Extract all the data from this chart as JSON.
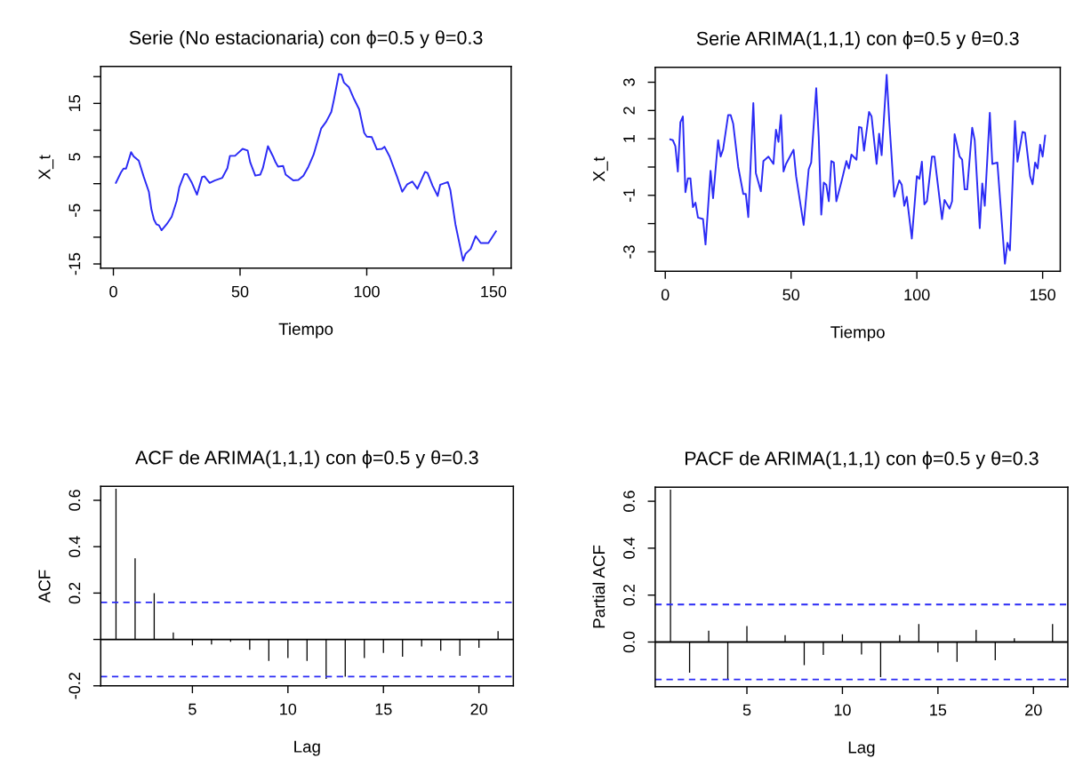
{
  "chart_data": [
    {
      "type": "line",
      "title": "Serie (No estacionaria) con ϕ=0.5 y θ=0.3",
      "xlabel": "Tiempo",
      "ylabel": "X_t",
      "x": [
        1,
        3,
        4,
        5,
        7,
        8,
        10,
        12,
        14,
        15,
        16,
        17,
        18,
        19,
        21,
        23,
        25,
        26,
        28,
        29,
        31,
        33,
        35,
        36,
        38,
        40,
        43,
        45,
        46,
        48,
        51,
        53,
        54,
        56,
        58,
        59,
        61,
        63,
        64,
        65,
        67,
        68,
        71,
        73,
        75,
        77,
        79,
        82,
        84,
        86,
        87,
        89,
        90,
        91,
        93,
        95,
        97,
        99,
        100,
        102,
        104,
        106,
        107,
        109,
        112,
        114,
        116,
        118,
        120,
        123,
        124,
        126,
        128,
        129,
        132,
        133,
        135,
        138,
        139,
        141,
        143,
        145,
        148,
        151
      ],
      "series": [
        {
          "color": "#2b2bf5",
          "values": [
            0.15,
            2.1,
            2.8,
            2.8,
            5.9,
            5.1,
            4.3,
            1.25,
            -1.5,
            -4.8,
            -6.7,
            -7.6,
            -7.8,
            -8.7,
            -7.6,
            -6.2,
            -3.2,
            -0.7,
            1.8,
            1.8,
            0.15,
            -2.05,
            1.25,
            1.35,
            0.15,
            0.6,
            1.1,
            2.9,
            5.2,
            5.2,
            6.5,
            6.2,
            4.0,
            1.5,
            1.7,
            2.9,
            7.0,
            5.1,
            4.0,
            3.2,
            3.3,
            1.7,
            0.6,
            0.7,
            1.5,
            3.2,
            5.4,
            10.3,
            11.6,
            13.4,
            15.6,
            20.5,
            20.4,
            18.9,
            18.0,
            15.8,
            13.9,
            9.5,
            8.8,
            8.7,
            6.4,
            6.5,
            6.9,
            5.1,
            1.25,
            -1.5,
            -0.1,
            0.4,
            -0.95,
            2.2,
            2.0,
            -0.4,
            -2.3,
            -0.2,
            0.3,
            -1.2,
            -7.6,
            -14.4,
            -13.1,
            -12.2,
            -9.8,
            -11.1,
            -11.1,
            -8.9
          ]
        }
      ],
      "xlim": [
        -5,
        157
      ],
      "xticks": [
        0,
        50,
        100,
        150
      ],
      "ylim": [
        -15.8,
        21.9
      ],
      "yticks": [
        -15,
        {
          "value": -10,
          "label": null
        },
        -5,
        {
          "value": 0,
          "label": null
        },
        5,
        {
          "value": 10,
          "label": null
        },
        15,
        {
          "value": 20,
          "label": null
        }
      ]
    },
    {
      "type": "line",
      "title": "Serie ARIMA(1,1,1) con ϕ=0.5 y θ=0.3",
      "xlabel": "Tiempo",
      "ylabel": "X_t",
      "x": [
        2,
        3,
        4,
        5,
        6,
        7,
        8,
        9,
        10,
        11,
        12,
        13,
        15,
        16,
        18,
        19,
        21,
        22,
        23,
        25,
        26,
        27,
        29,
        31,
        32,
        33,
        35,
        36,
        38,
        39,
        41,
        43,
        44,
        45,
        46,
        47,
        48,
        51,
        52,
        55,
        57,
        58,
        60,
        61,
        62,
        63,
        64,
        65,
        66,
        67,
        68,
        70,
        72,
        73,
        74,
        76,
        77,
        78,
        79,
        81,
        82,
        84,
        85,
        86,
        88,
        89,
        91,
        93,
        94,
        95,
        96,
        98,
        100,
        101,
        102,
        103,
        104,
        106,
        107,
        110,
        111,
        113,
        114,
        115,
        117,
        118,
        119,
        120,
        122,
        123,
        125,
        126,
        127,
        129,
        130,
        132,
        135,
        136,
        137,
        139,
        140,
        142,
        143,
        145,
        146,
        147,
        148,
        149,
        150,
        151
      ],
      "series": [
        {
          "color": "#2b2bf5",
          "values": [
            0.98,
            0.95,
            0.74,
            -0.16,
            1.58,
            1.79,
            -0.89,
            -0.4,
            -0.4,
            -1.42,
            -1.26,
            -1.79,
            -1.84,
            -2.74,
            -0.13,
            -1.1,
            0.95,
            0.37,
            0.63,
            1.84,
            1.84,
            1.53,
            0,
            -0.95,
            -0.95,
            -1.77,
            2.26,
            -0.21,
            -0.86,
            0.21,
            0.37,
            0.11,
            1.32,
            0.89,
            1.84,
            -0.16,
            0.11,
            0.61,
            -0.32,
            -2.05,
            -0.08,
            0.16,
            2.79,
            1.05,
            -1.68,
            -0.55,
            -0.63,
            -1.21,
            0.21,
            0.16,
            -1.21,
            -0.53,
            0.21,
            -0.05,
            0.44,
            0.26,
            1.42,
            1.39,
            0.58,
            1.95,
            1.79,
            0.11,
            1.18,
            0.42,
            3.26,
            1.68,
            -1.05,
            -0.47,
            -0.63,
            -1.37,
            -1.05,
            -2.53,
            -0.32,
            -0.42,
            0.19,
            -1.32,
            -1.21,
            0.37,
            0.37,
            -1.84,
            -1.16,
            -1.47,
            -1.21,
            1.16,
            0.37,
            0.26,
            -0.79,
            -0.79,
            1.39,
            0.95,
            -2.16,
            -0.58,
            -1.37,
            1.92,
            0.11,
            0.16,
            -3.42,
            -2.68,
            -2.95,
            1.63,
            0.19,
            1.24,
            1.21,
            -0.32,
            -0.61,
            0.16,
            -0.05,
            0.79,
            0.37,
            1.11
          ]
        }
      ],
      "xlim": [
        -4,
        157
      ],
      "xticks": [
        0,
        50,
        100,
        150
      ],
      "ylim": [
        -3.69,
        3.53
      ],
      "yticks": [
        -3,
        {
          "value": -2,
          "label": null
        },
        -1,
        {
          "value": 0,
          "label": null
        },
        1,
        2,
        3
      ]
    },
    {
      "type": "bar",
      "title": "ACF de ARIMA(1,1,1) con ϕ=0.5 y θ=0.3",
      "xlabel": "Lag",
      "ylabel": "ACF",
      "x": [
        1,
        2,
        3,
        4,
        5,
        6,
        7,
        8,
        9,
        10,
        11,
        12,
        13,
        14,
        15,
        16,
        17,
        18,
        19,
        20,
        21
      ],
      "series": [
        {
          "color": "#000000",
          "values": [
            0.65,
            0.35,
            0.2,
            0.03,
            -0.026,
            -0.022,
            -0.01,
            -0.045,
            -0.093,
            -0.08,
            -0.093,
            -0.17,
            -0.161,
            -0.08,
            -0.058,
            -0.074,
            -0.03,
            -0.049,
            -0.071,
            -0.036,
            0.036
          ]
        }
      ],
      "xlim": [
        0.2,
        21.8
      ],
      "xticks": [
        5,
        10,
        15,
        20
      ],
      "ylim": [
        -0.2,
        0.66
      ],
      "yticks": [
        {
          "value": -0.2,
          "label": "-0.2"
        },
        {
          "value": 0,
          "label": null
        },
        {
          "value": 0.2,
          "label": "0.2"
        },
        {
          "value": 0.4,
          "label": "0.4"
        },
        {
          "value": 0.6,
          "label": "0.6"
        }
      ],
      "ref_lines": [
        {
          "axis": "y",
          "value": 0,
          "color": "#000000",
          "line_style": "solid"
        },
        {
          "axis": "y",
          "value": 0.16,
          "color": "#2b2bf5",
          "line_style": "dashed"
        },
        {
          "axis": "y",
          "value": -0.16,
          "color": "#2b2bf5",
          "line_style": "dashed"
        }
      ]
    },
    {
      "type": "bar",
      "title": "PACF de ARIMA(1,1,1) con ϕ=0.5 y θ=0.3",
      "xlabel": "Lag",
      "ylabel": "Partial ACF",
      "x": [
        1,
        2,
        3,
        4,
        5,
        6,
        7,
        8,
        9,
        10,
        11,
        12,
        13,
        14,
        15,
        16,
        17,
        18,
        19,
        20,
        21
      ],
      "series": [
        {
          "color": "#000000",
          "values": [
            0.65,
            -0.131,
            0.048,
            -0.158,
            0.068,
            0,
            0.029,
            -0.099,
            -0.055,
            0.033,
            -0.053,
            -0.15,
            0.029,
            0.077,
            -0.045,
            -0.084,
            0.052,
            -0.078,
            0.016,
            0,
            0.077
          ]
        }
      ],
      "xlim": [
        0.2,
        21.8
      ],
      "xticks": [
        5,
        10,
        15,
        20
      ],
      "ylim": [
        -0.19,
        0.66
      ],
      "yticks": [
        {
          "value": 0,
          "label": "0.0"
        },
        {
          "value": 0.2,
          "label": "0.2"
        },
        {
          "value": 0.4,
          "label": "0.4"
        },
        {
          "value": 0.6,
          "label": "0.6"
        }
      ],
      "ref_lines": [
        {
          "axis": "y",
          "value": 0,
          "color": "#000000",
          "line_style": "solid"
        },
        {
          "axis": "y",
          "value": 0.16,
          "color": "#2b2bf5",
          "line_style": "dashed"
        },
        {
          "axis": "y",
          "value": -0.16,
          "color": "#2b2bf5",
          "line_style": "dashed"
        }
      ]
    }
  ]
}
